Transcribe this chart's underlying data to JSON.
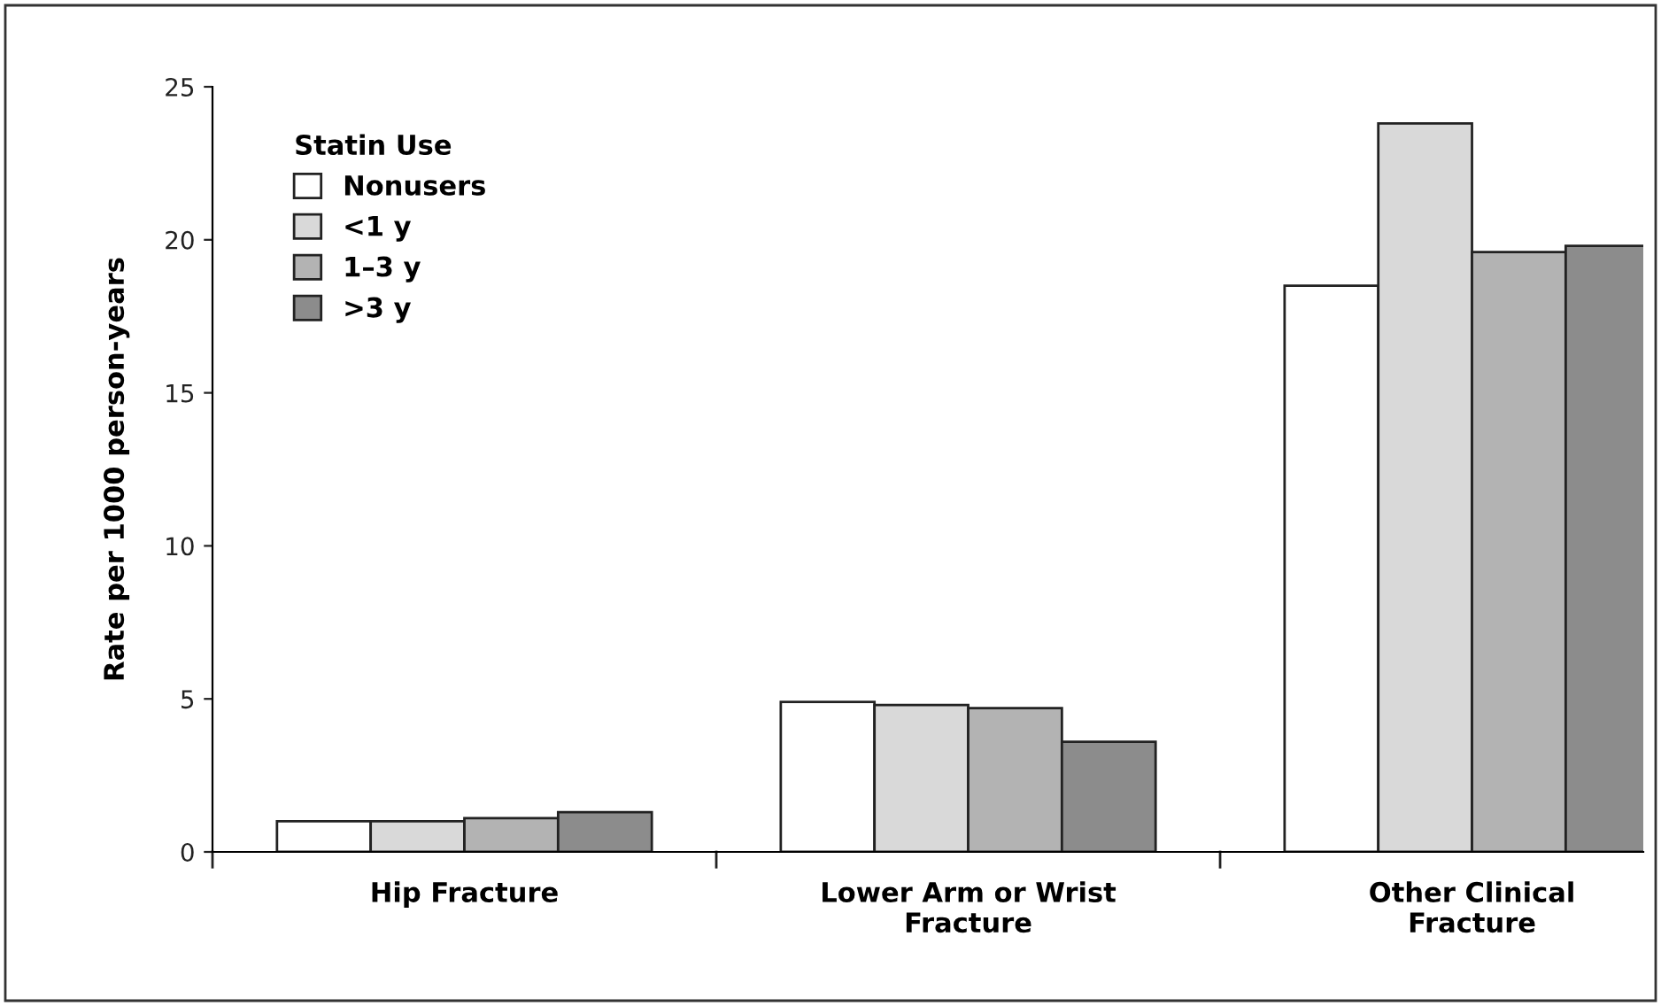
{
  "chart_data": {
    "type": "bar",
    "ylabel": "Rate per 1000 person-years",
    "legend_title": "Statin Use",
    "categories": [
      "Hip Fracture",
      "Lower Arm or Wrist\nFracture",
      "Other Clinical\nFracture"
    ],
    "series": [
      {
        "name": "Nonusers",
        "color": "#ffffff",
        "values": [
          1.0,
          4.9,
          18.5
        ]
      },
      {
        "name": "<1 y",
        "color": "#d9d9d9",
        "values": [
          1.0,
          4.8,
          23.8
        ]
      },
      {
        "name": "1–3 y",
        "color": "#b3b3b3",
        "values": [
          1.1,
          4.7,
          19.6
        ]
      },
      {
        "name": ">3 y",
        "color": "#8c8c8c",
        "values": [
          1.3,
          3.6,
          19.8
        ]
      }
    ],
    "ylim": [
      0,
      25
    ],
    "yticks": [
      0,
      5,
      10,
      15,
      20,
      25
    ],
    "grid": false,
    "legend": "top left"
  }
}
